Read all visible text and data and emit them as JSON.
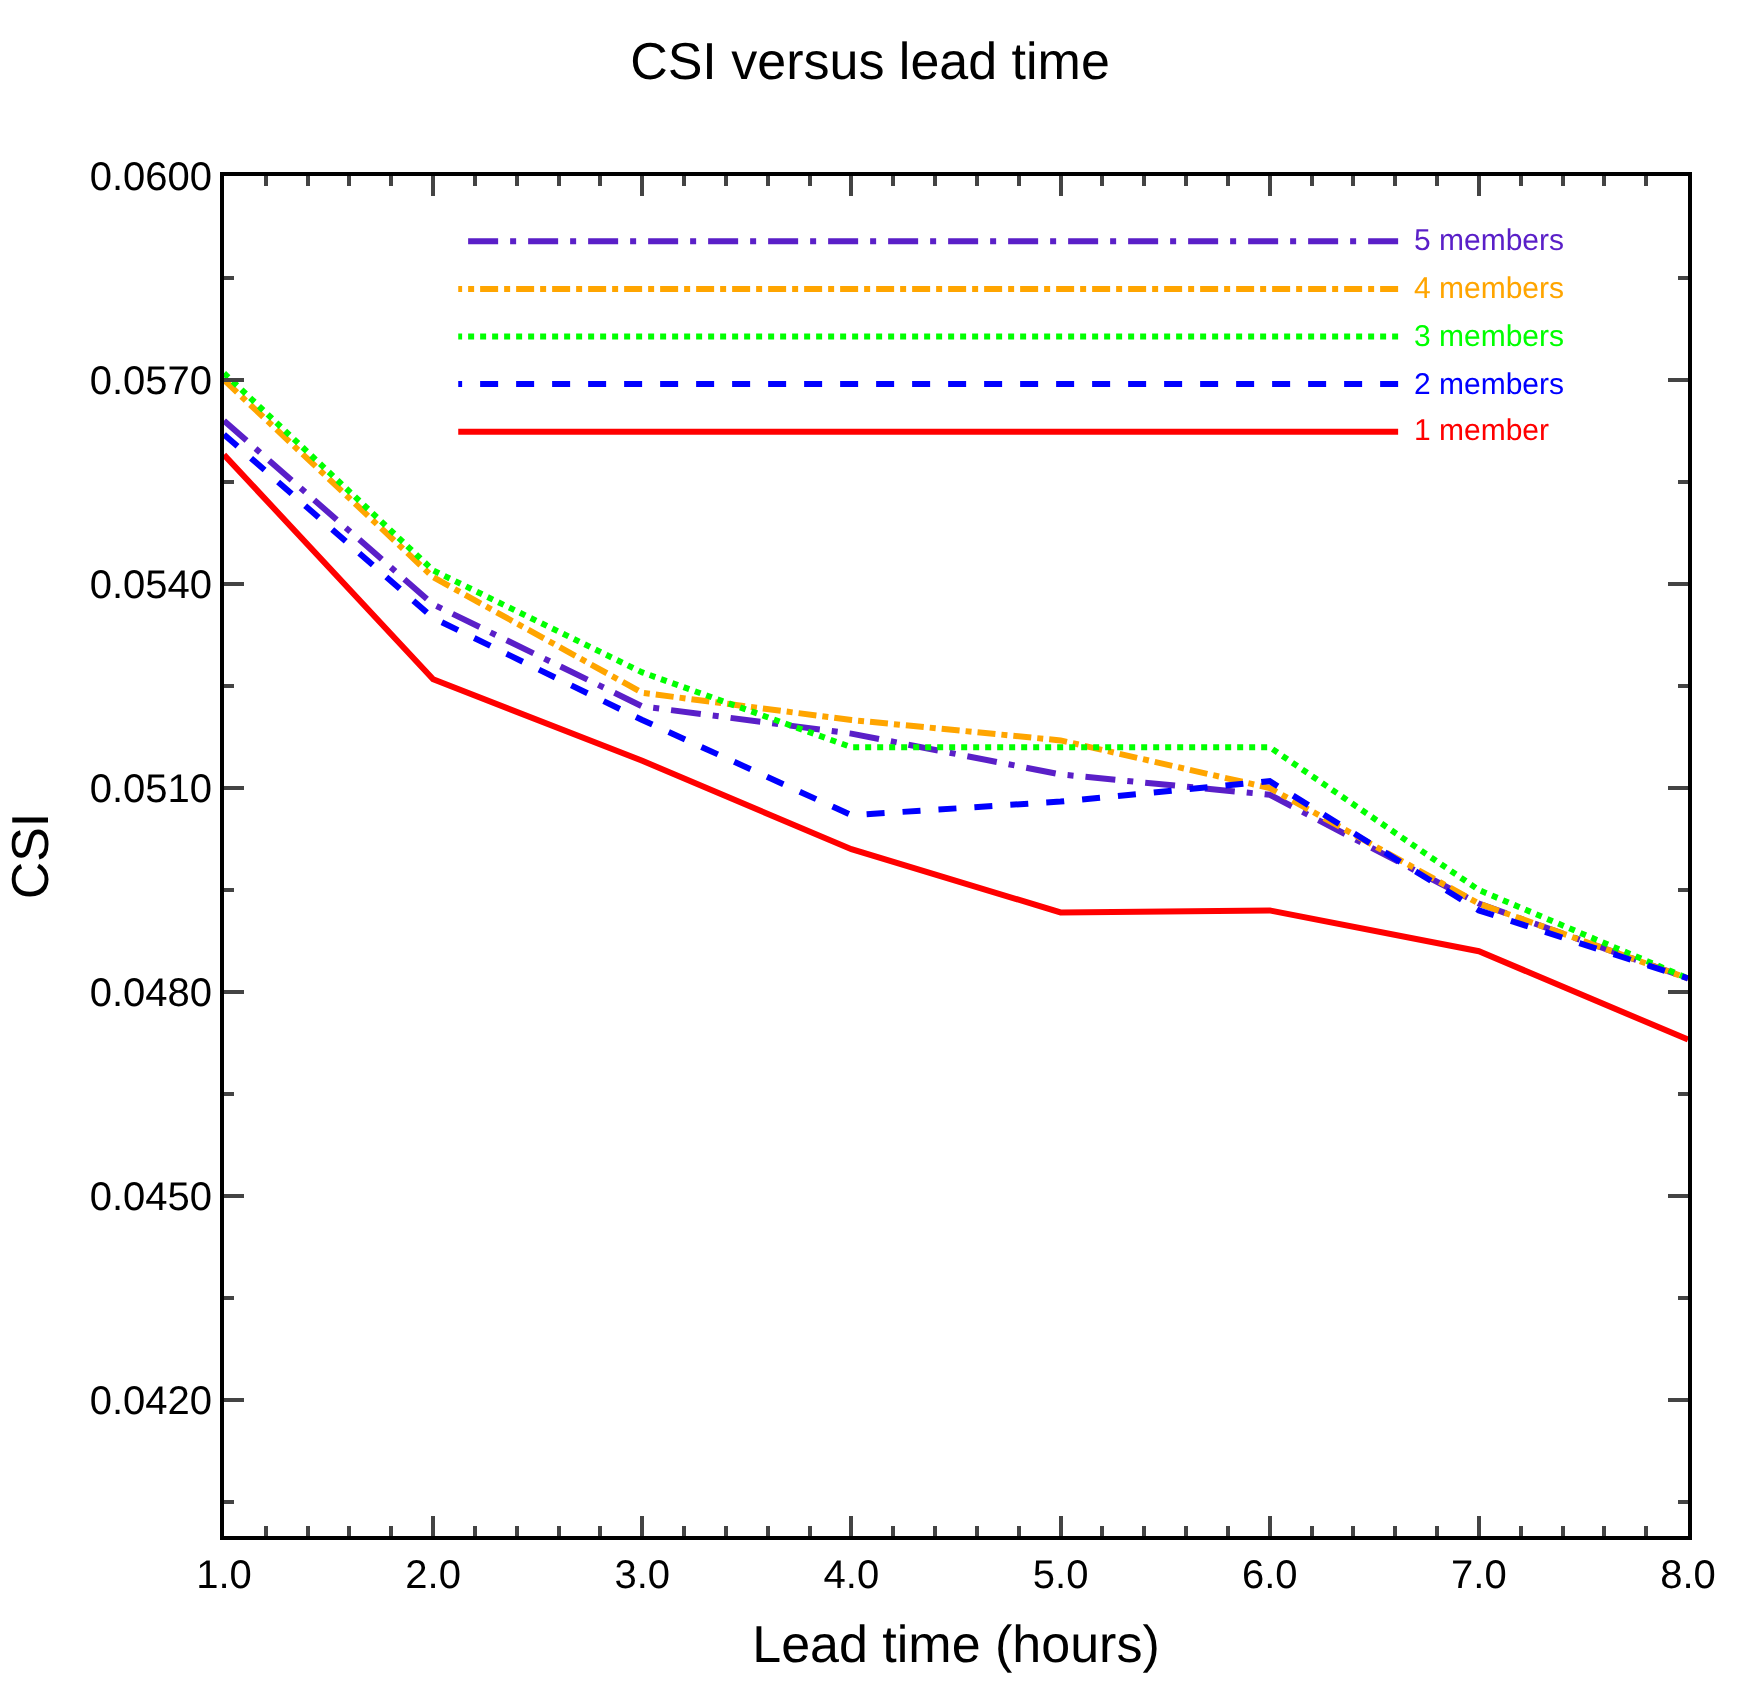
{
  "chart_data": {
    "type": "line",
    "title": "CSI versus lead time",
    "xlabel": "Lead time (hours)",
    "ylabel": "CSI",
    "x": [
      1,
      2,
      3,
      4,
      5,
      6,
      7,
      8
    ],
    "xlim": [
      1,
      8
    ],
    "xticks": [
      {
        "value": 1,
        "label": "1.0"
      },
      {
        "value": 2,
        "label": "2.0"
      },
      {
        "value": 3,
        "label": "3.0"
      },
      {
        "value": 4,
        "label": "4.0"
      },
      {
        "value": 5,
        "label": "5.0"
      },
      {
        "value": 6,
        "label": "6.0"
      },
      {
        "value": 7,
        "label": "7.0"
      },
      {
        "value": 8,
        "label": "8.0"
      }
    ],
    "ylim": [
      0.04,
      0.06
    ],
    "yticks": [
      {
        "value": 0.042,
        "label": "0.0420"
      },
      {
        "value": 0.045,
        "label": "0.0450"
      },
      {
        "value": 0.048,
        "label": "0.0480"
      },
      {
        "value": 0.051,
        "label": "0.0510"
      },
      {
        "value": 0.054,
        "label": "0.0540"
      },
      {
        "value": 0.057,
        "label": "0.0570"
      },
      {
        "value": 0.06,
        "label": "0.0600"
      }
    ],
    "legend": "top right",
    "marker": "none",
    "series": [
      {
        "name": "5 members",
        "color": "#5a1fc8",
        "line_style": "longdashdot",
        "values": [
          0.0564,
          0.0537,
          0.0522,
          0.0518,
          0.0512,
          0.0509,
          0.0493,
          0.0482
        ]
      },
      {
        "name": "4 members",
        "color": "#ffa500",
        "line_style": "dashdot",
        "values": [
          0.057,
          0.0541,
          0.0524,
          0.052,
          0.0517,
          0.051,
          0.0493,
          0.0482
        ]
      },
      {
        "name": "3 members",
        "color": "#00ff00",
        "line_style": "dotted",
        "values": [
          0.0571,
          0.0542,
          0.0527,
          0.0516,
          0.0516,
          0.0516,
          0.0495,
          0.0482
        ]
      },
      {
        "name": "2 members",
        "color": "#0000ff",
        "line_style": "dashed",
        "values": [
          0.0562,
          0.0535,
          0.052,
          0.0506,
          0.0508,
          0.0511,
          0.0492,
          0.0482
        ]
      },
      {
        "name": "1 member",
        "color": "#ff0000",
        "line_style": "solid",
        "values": [
          0.0559,
          0.0526,
          0.0514,
          0.0501,
          0.04917,
          0.0492,
          0.0486,
          0.0473
        ]
      }
    ]
  }
}
